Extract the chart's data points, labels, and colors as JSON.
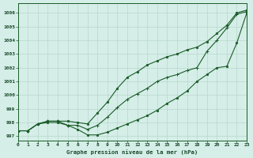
{
  "xlabel": "Graphe pression niveau de la mer (hPa)",
  "xlim": [
    0,
    23
  ],
  "ylim": [
    996.7,
    1006.7
  ],
  "yticks": [
    997,
    998,
    999,
    1000,
    1001,
    1002,
    1003,
    1004,
    1005,
    1006
  ],
  "xticks": [
    0,
    1,
    2,
    3,
    4,
    5,
    6,
    7,
    8,
    9,
    10,
    11,
    12,
    13,
    14,
    15,
    16,
    17,
    18,
    19,
    20,
    21,
    22,
    23
  ],
  "background_color": "#d5eee8",
  "grid_color": "#b8d8cc",
  "line_color": "#1a5c28",
  "series_top": [
    997.4,
    997.4,
    997.9,
    998.1,
    998.1,
    998.1,
    998.0,
    997.9,
    998.7,
    999.5,
    1000.5,
    1001.3,
    1001.7,
    1002.2,
    1002.5,
    1002.8,
    1003.0,
    1003.3,
    1003.5,
    1003.9,
    1004.5,
    1005.1,
    1006.0,
    1006.2
  ],
  "series_mid": [
    997.4,
    997.4,
    997.9,
    998.1,
    998.1,
    997.8,
    997.8,
    997.5,
    997.8,
    998.4,
    999.1,
    999.7,
    1000.1,
    1000.5,
    1001.0,
    1001.3,
    1001.5,
    1001.8,
    1002.0,
    1003.2,
    1004.0,
    1004.9,
    1005.9,
    1006.1
  ],
  "series_bot": [
    997.4,
    997.4,
    997.9,
    998.0,
    998.0,
    997.8,
    997.5,
    997.1,
    997.1,
    997.3,
    997.6,
    997.9,
    998.2,
    998.5,
    998.9,
    999.4,
    999.8,
    1000.3,
    1001.0,
    1001.5,
    1002.0,
    1002.1,
    1003.8,
    1006.0
  ],
  "figwidth": 3.2,
  "figheight": 2.0,
  "dpi": 100
}
